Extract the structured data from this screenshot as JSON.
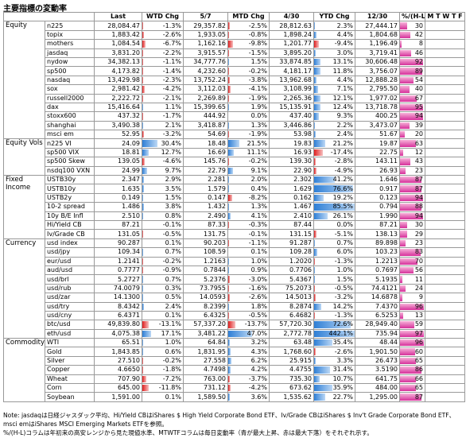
{
  "title": "主要指標の変動率",
  "headers": [
    "Last",
    "WTD Chg",
    "5/7",
    "MTD Chg",
    "4/30",
    "YTD Chg",
    "12/30",
    "%/(H-L)",
    "M T W T F"
  ],
  "sections": [
    {
      "name": "Equity",
      "rows": [
        [
          "n225",
          "28,084.47",
          "-1.3%",
          "29,357.82",
          "-2.5%",
          "28,812.63",
          "2.3%",
          "27,444.17",
          30
        ],
        [
          "topix",
          "1,883.42",
          "-2.6%",
          "1,933.05",
          "-0.8%",
          "1,898.24",
          "4.4%",
          "1,804.68",
          42
        ],
        [
          "mothers",
          "1,084.54",
          "-6.7%",
          "1,162.16",
          "-9.8%",
          "1,201.77",
          "-9.4%",
          "1,196.49",
          8
        ],
        [
          "jasdaq",
          "3,831.20",
          "-2.2%",
          "3,915.57",
          "-1.5%",
          "3,895.20",
          "3.0%",
          "3,719.41",
          46
        ],
        [
          "nydow",
          "34,382.13",
          "-1.1%",
          "34,777.76",
          "1.5%",
          "33,874.85",
          "13.1%",
          "30,606.48",
          92
        ],
        [
          "sp500",
          "4,173.82",
          "-1.4%",
          "4,232.60",
          "-0.2%",
          "4,181.17",
          "11.8%",
          "3,756.07",
          89
        ],
        [
          "nasdaq",
          "13,429.98",
          "-2.3%",
          "13,752.24",
          "-3.8%",
          "13,962.68",
          "4.4%",
          "12,888.28",
          54
        ],
        [
          "sox",
          "2,981.42",
          "-4.2%",
          "3,112.03",
          "-4.1%",
          "3,108.99",
          "7.1%",
          "2,795.50",
          40
        ],
        [
          "russell2000",
          "2,222.72",
          "-2.1%",
          "2,269.89",
          "-1.9%",
          "2,265.36",
          "12.1%",
          "1,977.02",
          67
        ],
        [
          "dax",
          "15,416.64",
          "1.1%",
          "15,399.65",
          "1.9%",
          "15,135.91",
          "12.4%",
          "13,718.78",
          95
        ],
        [
          "stoxx600",
          "437.32",
          "-1.7%",
          "444.92",
          "0.0%",
          "437.40",
          "9.3%",
          "400.25",
          94
        ],
        [
          "shanghai",
          "3,490.38",
          "2.1%",
          "3,418.87",
          "1.3%",
          "3,446.86",
          "2.2%",
          "3,473.07",
          39
        ],
        [
          "msci em",
          "52.95",
          "-3.2%",
          "54.69",
          "-1.9%",
          "53.98",
          "2.4%",
          "51.67",
          20
        ]
      ]
    },
    {
      "name": "Equity Vols",
      "rows": [
        [
          "n225 VI",
          "24.09",
          "30.4%",
          "18.48",
          "21.5%",
          "19.83",
          "21.2%",
          "19.87",
          63
        ],
        [
          "sp500 VIX",
          "18.81",
          "12.7%",
          "16.69",
          "11.1%",
          "16.93",
          "-17.4%",
          "22.75",
          12
        ],
        [
          "sp500 Skew",
          "139.05",
          "-4.6%",
          "145.76",
          "-0.2%",
          "139.30",
          "-2.8%",
          "143.11",
          43
        ],
        [
          "nsdq100 VXN",
          "24.99",
          "9.7%",
          "22.79",
          "9.1%",
          "22.90",
          "-4.9%",
          "26.93",
          23
        ]
      ]
    },
    {
      "name": "Fixed Income",
      "rows": [
        [
          "USTB30y",
          "2.347",
          "2.9%",
          "2.281",
          "2.0%",
          "2.302",
          "41.2%",
          "1.646",
          87
        ],
        [
          "USTB10y",
          "1.635",
          "3.5%",
          "1.579",
          "0.4%",
          "1.629",
          "76.6%",
          "0.917",
          87
        ],
        [
          "USTB2y",
          "0.149",
          "1.5%",
          "0.147",
          "-8.2%",
          "0.162",
          "19.2%",
          "0.123",
          94
        ],
        [
          "10-2 spread",
          "1.486",
          "3.8%",
          "1.432",
          "1.3%",
          "1.467",
          "85.5%",
          "0.794",
          88
        ],
        [
          "10y B/E Infl",
          "2.510",
          "0.8%",
          "2.490",
          "4.1%",
          "2.410",
          "26.1%",
          "1.990",
          94
        ],
        [
          "Hi/Yield CB",
          "87.21",
          "-0.1%",
          "87.33",
          "-0.3%",
          "87.44",
          "0.0%",
          "87.21",
          30
        ],
        [
          "Iv/Grade CB",
          "131.05",
          "-0.5%",
          "131.75",
          "-0.1%",
          "131.15",
          "-5.1%",
          "138.13",
          29
        ]
      ]
    },
    {
      "name": "Currency",
      "rows": [
        [
          "usd index",
          "90.287",
          "0.1%",
          "90.203",
          "-1.1%",
          "91.287",
          "0.7%",
          "89.898",
          23
        ],
        [
          "usd/jpy",
          "109.34",
          "0.7%",
          "108.59",
          "0.1%",
          "109.28",
          "6.0%",
          "103.23",
          83
        ],
        [
          "eur/usd",
          "1.2141",
          "-0.2%",
          "1.2163",
          "1.0%",
          "1.2020",
          "-1.3%",
          "1.2213",
          70
        ],
        [
          "aud/usd",
          "0.7777",
          "-0.9%",
          "0.7844",
          "0.9%",
          "0.7706",
          "1.0%",
          "0.7697",
          56
        ],
        [
          "usd/brl",
          "5.2727",
          "0.7%",
          "5.2376",
          "-3.0%",
          "5.4367",
          "1.5%",
          "5.1935",
          11
        ],
        [
          "usd/rub",
          "74.0079",
          "0.3%",
          "73.7955",
          "-1.6%",
          "75.2073",
          "-0.5%",
          "74.4121",
          24
        ],
        [
          "usd/zar",
          "14.1300",
          "0.5%",
          "14.0593",
          "-2.6%",
          "14.5013",
          "-3.2%",
          "14.6878",
          9
        ],
        [
          "usd/try",
          "8.4342",
          "2.4%",
          "8.2399",
          "1.8%",
          "8.2874",
          "14.2%",
          "7.4370",
          96
        ],
        [
          "usd/cny",
          "6.4371",
          "0.1%",
          "6.4325",
          "-0.5%",
          "6.4682",
          "-1.3%",
          "6.5253",
          13
        ],
        [
          "btc/usd",
          "49,839.80",
          "-13.1%",
          "57,337.20",
          "-13.7%",
          "57,720.30",
          "72.6%",
          "28,949.40",
          59
        ],
        [
          "eth/usd",
          "4,075.38",
          "17.1%",
          "3,481.22",
          "47.0%",
          "2,772.78",
          "442.1%",
          "735.94",
          97
        ]
      ]
    },
    {
      "name": "Commodity",
      "rows": [
        [
          "WTI",
          "65.51",
          "1.0%",
          "64.84",
          "3.2%",
          "63.48",
          "35.4%",
          "48.44",
          96
        ],
        [
          "Gold",
          "1,843.85",
          "0.6%",
          "1,831.95",
          "4.3%",
          "1,768.60",
          "-2.6%",
          "1,901.50",
          60
        ],
        [
          "Silver",
          "27.510",
          "-0.2%",
          "27.558",
          "6.2%",
          "25.915",
          "3.3%",
          "26.473",
          65
        ],
        [
          "Copper",
          "4.6650",
          "-1.8%",
          "4.7498",
          "4.2%",
          "4.4755",
          "31.4%",
          "3.5190",
          86
        ],
        [
          "Wheat",
          "707.90",
          "-7.2%",
          "763.00",
          "-3.7%",
          "735.30",
          "10.7%",
          "641.75",
          66
        ],
        [
          "Corn",
          "645.00",
          "-11.8%",
          "731.12",
          "-4.2%",
          "673.62",
          "35.9%",
          "484.00",
          65
        ],
        [
          "Soybean",
          "1,591.00",
          "0.1%",
          "1,589.50",
          "3.6%",
          "1,535.62",
          "22.7%",
          "1,295.00",
          87
        ]
      ]
    }
  ],
  "notes": [
    "Note: jasdaqは日経ジャスダック平均、Hi/Yield CBはiShares $ High Yield Corporate Bond ETF、Iv/Grade CBはiShares $ Inv't Grade Corporate Bond ETF、msci emはiShares MSCI Emerging Markets ETFを参照。",
    "%/(H-L)コラムは年初来の高安レンジから見た現値水準、MTWTFコラムは毎日変動率（青が最大上昇、赤は最大下落）をそれぞれ示す。"
  ]
}
